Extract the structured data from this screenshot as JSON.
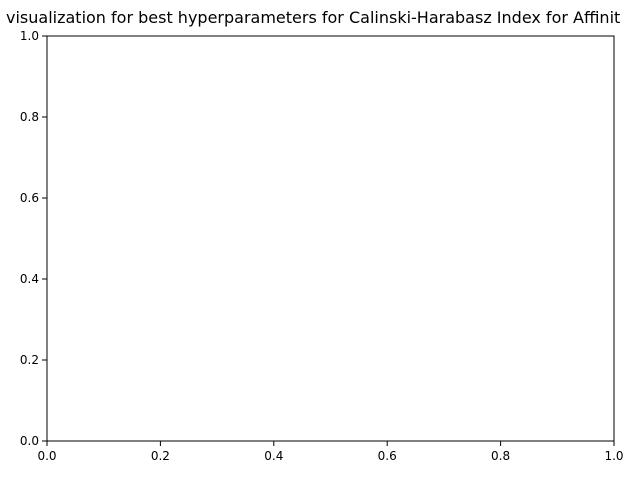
{
  "chart_data": {
    "type": "scatter",
    "title": "visualization for best hyperparameters for Calinski-Harabasz Index for Affinit",
    "xlabel": "",
    "ylabel": "",
    "xlim": [
      0.0,
      1.0
    ],
    "ylim": [
      0.0,
      1.0
    ],
    "x_ticks": [
      "0.0",
      "0.2",
      "0.4",
      "0.6",
      "0.8",
      "1.0"
    ],
    "y_ticks": [
      "0.0",
      "0.2",
      "0.4",
      "0.6",
      "0.8",
      "1.0"
    ],
    "series": [],
    "grid": false,
    "legend": "none"
  }
}
